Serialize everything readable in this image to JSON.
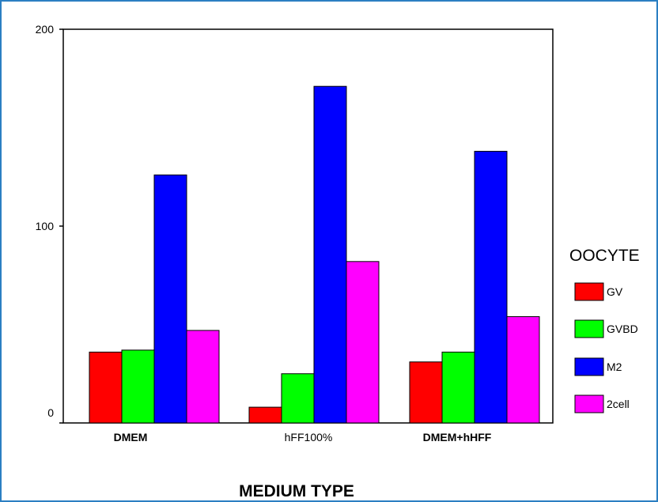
{
  "chart_data": {
    "type": "bar",
    "title": "",
    "xlabel": "MEDIUM TYPE",
    "ylabel": "",
    "ylim": [
      0,
      200
    ],
    "yticks": [
      "0",
      "100",
      "200"
    ],
    "categories": [
      "DMEM",
      "hFF100%",
      "DMEM+hHFF"
    ],
    "category_bold": [
      true,
      false,
      true
    ],
    "legend_title": "OOCYTE",
    "legend_position": "right",
    "grid": false,
    "series": [
      {
        "name": "GV",
        "color": "#ff0000",
        "values": [
          36,
          8,
          31
        ]
      },
      {
        "name": "GVBD",
        "color": "#00ff00",
        "values": [
          37,
          25,
          36
        ]
      },
      {
        "name": "M2",
        "color": "#0000ff",
        "values": [
          126,
          171,
          138
        ]
      },
      {
        "name": "2cell",
        "color": "#ff00ff",
        "values": [
          47,
          82,
          54
        ]
      }
    ]
  }
}
